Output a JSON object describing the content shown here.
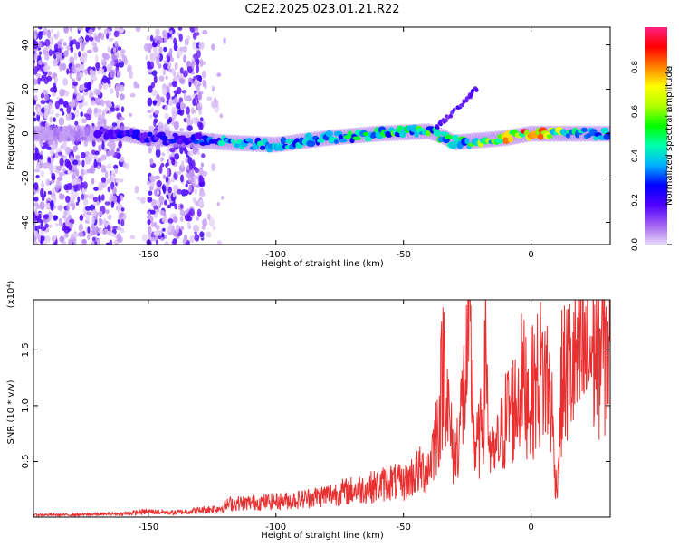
{
  "figure": {
    "title": "C2E2.2025.023.01.21.R22"
  },
  "chart_data": [
    {
      "type": "heatmap",
      "xlabel": "Height of straight line (km)",
      "ylabel": "Frequency (Hz)",
      "xlim": [
        -195,
        31
      ],
      "ylim": [
        -50,
        48
      ],
      "xticks": [
        -150,
        -100,
        -50,
        0
      ],
      "yticks": [
        -40,
        -20,
        0,
        20,
        40
      ],
      "colorbar": {
        "label": "Normalized spectral amplitude",
        "range": [
          0,
          0.98
        ],
        "ticks": [
          "0.0",
          "0.2",
          "0.4",
          "0.6",
          "0.8"
        ],
        "colormap": [
          "#e8d8f8",
          "#a060f0",
          "#5000ff",
          "#0000ff",
          "#00b0ff",
          "#00ffb0",
          "#00ff00",
          "#b0ff00",
          "#ffff00",
          "#ff8000",
          "#ff0000",
          "#ff2080"
        ]
      },
      "frequency_track": {
        "x": [
          -195,
          -160,
          -150,
          -130,
          -120,
          -100,
          -80,
          -60,
          -40,
          -35,
          -30,
          -20,
          -10,
          0,
          10,
          20,
          31
        ],
        "y": [
          0,
          0,
          -2,
          -3,
          -4,
          -5,
          -2,
          0,
          1,
          -1,
          -4,
          -3,
          -2,
          0,
          0,
          0,
          0
        ],
        "peak_amplitude": [
          0.15,
          0.25,
          0.25,
          0.3,
          0.45,
          0.45,
          0.5,
          0.55,
          0.55,
          0.5,
          0.5,
          0.6,
          0.75,
          0.95,
          0.7,
          0.5,
          0.4
        ]
      },
      "secondary_branch": {
        "x": [
          -37,
          -32,
          -28,
          -24,
          -21
        ],
        "y": [
          3,
          8,
          12,
          17,
          21
        ]
      }
    },
    {
      "type": "line",
      "xlabel": "Height of straight line (km)",
      "ylabel": "SNR (10 * v/v)",
      "yscale_label": "(x10⁴)",
      "xlim": [
        -195,
        31
      ],
      "ylim": [
        0,
        1.95
      ],
      "xticks": [
        -150,
        -100,
        -50,
        0
      ],
      "yticks": [
        0.5,
        1.0,
        1.5
      ],
      "ytick_labels": [
        "0.5",
        "1.0",
        "1.5"
      ],
      "color": "#e83030",
      "series": [
        {
          "x": [
            -195,
            -180,
            -160,
            -150,
            -140,
            -130,
            -122,
            -118,
            -110,
            -100,
            -90,
            -80,
            -70,
            -60,
            -55,
            -50,
            -45,
            -40,
            -36,
            -34,
            -32,
            -30,
            -27,
            -24,
            -22,
            -20,
            -18,
            -17.5,
            -17,
            -15,
            -12,
            -9,
            -6,
            -4,
            -2,
            0,
            2,
            4,
            6,
            8,
            9,
            10,
            11,
            12,
            14,
            16,
            18,
            20,
            22,
            24,
            26,
            28,
            31
          ],
          "y": [
            0.02,
            0.02,
            0.03,
            0.05,
            0.04,
            0.06,
            0.08,
            0.12,
            0.13,
            0.14,
            0.16,
            0.2,
            0.24,
            0.28,
            0.32,
            0.3,
            0.4,
            0.45,
            0.9,
            1.5,
            0.8,
            0.5,
            1.0,
            1.55,
            0.6,
            0.7,
            1.2,
            1.95,
            0.8,
            0.5,
            0.7,
            0.95,
            1.0,
            1.2,
            1.15,
            1.1,
            1.2,
            1.3,
            1.25,
            1.05,
            0.5,
            0.25,
            0.6,
            1.2,
            1.3,
            1.35,
            1.38,
            1.42,
            1.45,
            1.48,
            1.5,
            1.52,
            1.5
          ]
        }
      ]
    }
  ]
}
